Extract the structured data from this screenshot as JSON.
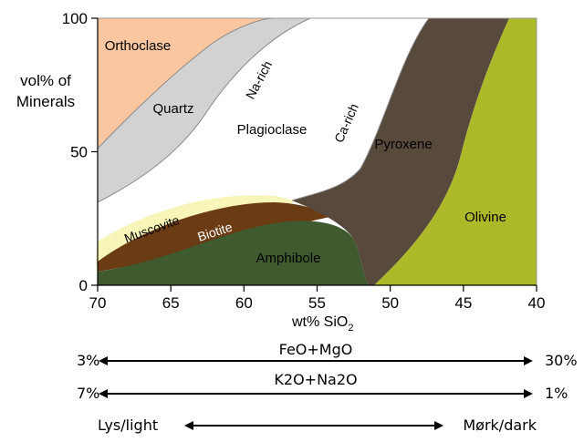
{
  "y_axis": {
    "label_lines": [
      "vol% of",
      "Minerals"
    ],
    "ticks": [
      {
        "value": 100,
        "label": "100"
      },
      {
        "value": 50,
        "label": "50"
      },
      {
        "value": 0,
        "label": "0"
      }
    ]
  },
  "x_axis": {
    "label": "wt% SiO",
    "label_subscript": "2",
    "ticks": [
      {
        "value": 70,
        "label": "70"
      },
      {
        "value": 65,
        "label": "65"
      },
      {
        "value": 60,
        "label": "60"
      },
      {
        "value": 55,
        "label": "55"
      },
      {
        "value": 50,
        "label": "50"
      },
      {
        "value": 45,
        "label": "45"
      },
      {
        "value": 40,
        "label": "40"
      }
    ]
  },
  "fields": {
    "orthoclase": {
      "label": "Orthoclase",
      "color": "#f9c6a0"
    },
    "quartz": {
      "label": "Quartz",
      "color": "#d2d2d2"
    },
    "plagioclase": {
      "label": "Plagioclase",
      "color": "#ffffff"
    },
    "na_rich": {
      "label": "Na-rich"
    },
    "ca_rich": {
      "label": "Ca-rich"
    },
    "muscovite": {
      "label": "Muscovite",
      "color": "#f7f5b8"
    },
    "biotite": {
      "label": "Biotite",
      "color": "#6b3b13"
    },
    "amphibole": {
      "label": "Amphibole",
      "color": "#3e5a2e"
    },
    "pyroxene": {
      "label": "Pyroxene",
      "color": "#57493b"
    },
    "olivine": {
      "label": "Olivine",
      "color": "#acb928"
    }
  },
  "scales": [
    {
      "label": "FeO+MgO",
      "left": "3%",
      "right": "30%"
    },
    {
      "label": "K2O+Na2O",
      "left": "7%",
      "right": "1%"
    },
    {
      "label": "",
      "left": "Lys/light",
      "right": "Mørk/dark"
    }
  ]
}
